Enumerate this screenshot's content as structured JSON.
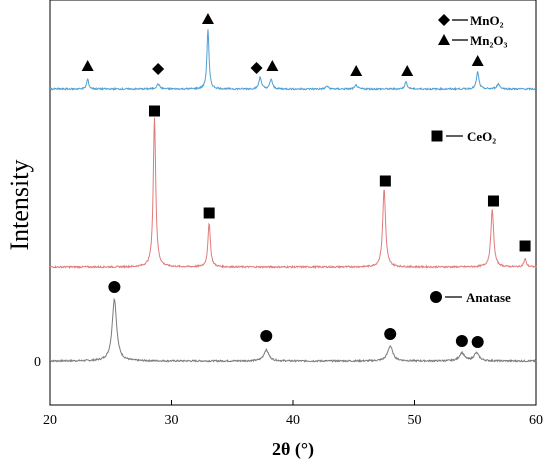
{
  "chart_data": {
    "type": "line",
    "title": "",
    "xlabel": "2θ (°)",
    "ylabel": "Intensity",
    "xlim": [
      20,
      60
    ],
    "x_ticks": [
      "20",
      "30",
      "40",
      "50",
      "60"
    ],
    "y_ticks": [
      "0"
    ],
    "grid": false,
    "series": [
      {
        "color": "#7a7a7a",
        "offset": 0,
        "baseline": 0,
        "peaks": [
          {
            "x": 25.3,
            "h": 62,
            "w": 0.22
          },
          {
            "x": 37.8,
            "h": 11,
            "w": 0.25
          },
          {
            "x": 48.0,
            "h": 15,
            "w": 0.25
          },
          {
            "x": 53.9,
            "h": 8,
            "w": 0.25
          },
          {
            "x": 55.1,
            "h": 8,
            "w": 0.25
          }
        ]
      },
      {
        "color": "#e07b7b",
        "offset": 94,
        "baseline": 0,
        "peaks": [
          {
            "x": 28.6,
            "h": 150,
            "w": 0.12
          },
          {
            "x": 33.1,
            "h": 44,
            "w": 0.12
          },
          {
            "x": 47.5,
            "h": 78,
            "w": 0.14
          },
          {
            "x": 56.4,
            "h": 57,
            "w": 0.14
          },
          {
            "x": 59.1,
            "h": 8,
            "w": 0.12
          }
        ]
      },
      {
        "color": "#4f9fd0",
        "offset": 272,
        "baseline": 0,
        "peaks": [
          {
            "x": 23.1,
            "h": 10,
            "w": 0.1
          },
          {
            "x": 28.9,
            "h": 5,
            "w": 0.15
          },
          {
            "x": 33.0,
            "h": 60,
            "w": 0.1
          },
          {
            "x": 37.3,
            "h": 12,
            "w": 0.12
          },
          {
            "x": 38.2,
            "h": 10,
            "w": 0.12
          },
          {
            "x": 42.8,
            "h": 3,
            "w": 0.12
          },
          {
            "x": 45.2,
            "h": 4,
            "w": 0.12
          },
          {
            "x": 49.3,
            "h": 7,
            "w": 0.12
          },
          {
            "x": 55.2,
            "h": 17,
            "w": 0.12
          },
          {
            "x": 56.9,
            "h": 5,
            "w": 0.15
          }
        ]
      }
    ],
    "markers": [
      {
        "shape": "circle",
        "x": 25.3,
        "level": 74
      },
      {
        "shape": "circle",
        "x": 37.8,
        "level": 25
      },
      {
        "shape": "circle",
        "x": 48.0,
        "level": 27
      },
      {
        "shape": "circle",
        "x": 53.9,
        "level": 20
      },
      {
        "shape": "circle",
        "x": 55.2,
        "level": 19
      },
      {
        "shape": "square",
        "x": 28.6,
        "level": 250
      },
      {
        "shape": "square",
        "x": 33.1,
        "level": 148
      },
      {
        "shape": "square",
        "x": 47.6,
        "level": 180
      },
      {
        "shape": "square",
        "x": 56.5,
        "level": 160
      },
      {
        "shape": "square",
        "x": 59.1,
        "level": 115
      },
      {
        "shape": "triangle",
        "x": 23.1,
        "level": 295
      },
      {
        "shape": "diamond",
        "x": 28.9,
        "level": 292
      },
      {
        "shape": "triangle",
        "x": 33.0,
        "level": 342
      },
      {
        "shape": "diamond",
        "x": 37.0,
        "level": 293
      },
      {
        "shape": "triangle",
        "x": 38.3,
        "level": 295
      },
      {
        "shape": "triangle",
        "x": 45.2,
        "level": 290
      },
      {
        "shape": "triangle",
        "x": 49.4,
        "level": 290
      },
      {
        "shape": "triangle",
        "x": 55.2,
        "level": 300
      }
    ],
    "legends": [
      {
        "shape": "circle",
        "label": "Anatase",
        "placement": "bottom-right"
      },
      {
        "shape": "square",
        "label": "CeO₂",
        "placement": "middle-right"
      },
      {
        "shape": "diamond",
        "label": "MnO₂",
        "placement": "top-right"
      },
      {
        "shape": "triangle",
        "label": "Mn₂O₃",
        "placement": "top-right"
      }
    ]
  }
}
